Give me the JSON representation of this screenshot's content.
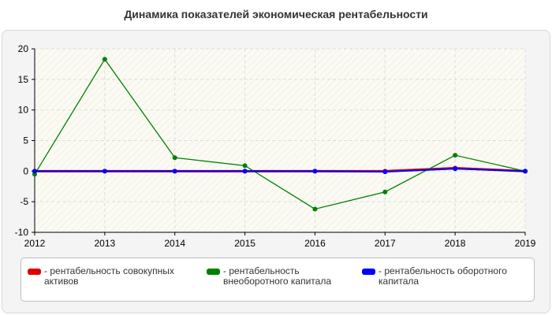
{
  "chart_data": {
    "type": "line",
    "title": "Динамика показателей экономическая рентабельности",
    "xlabel": "",
    "ylabel": "",
    "categories": [
      "2012",
      "2013",
      "2014",
      "2015",
      "2016",
      "2017",
      "2018",
      "2019"
    ],
    "ylim": [
      -10,
      20
    ],
    "yticks": [
      "20",
      "15",
      "10",
      "5",
      "0",
      "-5",
      "-10"
    ],
    "grid": true,
    "legend_position": "bottom",
    "series": [
      {
        "name": "рентабельность совокупных активов",
        "color": "#e00000",
        "values": [
          0,
          0,
          0,
          0,
          0,
          0,
          0.5,
          0
        ]
      },
      {
        "name": "рентабельность внеоборотного капитала",
        "color": "#008000",
        "values": [
          -0.5,
          18.3,
          2.2,
          0.9,
          -6.2,
          -3.4,
          2.6,
          0
        ]
      },
      {
        "name": "рентабельность оборотного капитала",
        "color": "#0000ff",
        "values": [
          0,
          0,
          0,
          0,
          0,
          -0.1,
          0.4,
          0
        ]
      }
    ]
  }
}
